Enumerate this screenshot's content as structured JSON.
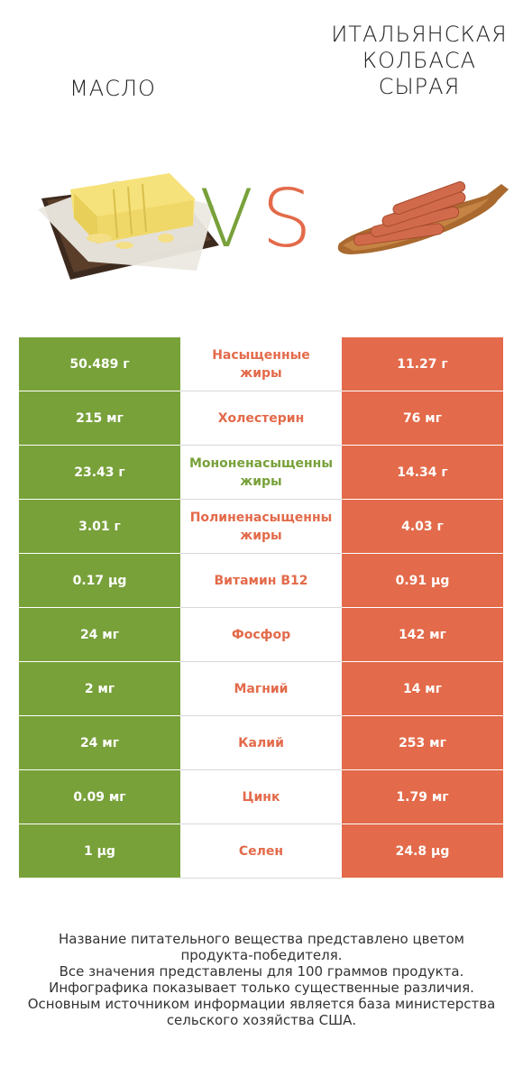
{
  "header": {
    "left_title": "МАСЛО",
    "right_title_lines": [
      "ИТАЛЬЯНСКАЯ",
      "КОЛБАСА",
      "СЫРАЯ"
    ],
    "vs_v": "V",
    "vs_s": "S"
  },
  "colors": {
    "winner_left": "#78a13a",
    "winner_right": "#e36a4a"
  },
  "rows": [
    {
      "left": "50.489 г",
      "label_lines": [
        "Насыщенные",
        "жиры"
      ],
      "right": "11.27 г",
      "winner": "right"
    },
    {
      "left": "215 мг",
      "label_lines": [
        "Холестерин"
      ],
      "right": "76 мг",
      "winner": "right"
    },
    {
      "left": "23.43 г",
      "label_lines": [
        "Мононенасыщенны",
        "жиры"
      ],
      "right": "14.34 г",
      "winner": "left"
    },
    {
      "left": "3.01 г",
      "label_lines": [
        "Полиненасыщенны",
        "жиры"
      ],
      "right": "4.03 г",
      "winner": "right"
    },
    {
      "left": "0.17 µg",
      "label_lines": [
        "Витамин B12"
      ],
      "right": "0.91 µg",
      "winner": "right"
    },
    {
      "left": "24 мг",
      "label_lines": [
        "Фосфор"
      ],
      "right": "142 мг",
      "winner": "right"
    },
    {
      "left": "2 мг",
      "label_lines": [
        "Магний"
      ],
      "right": "14 мг",
      "winner": "right"
    },
    {
      "left": "24 мг",
      "label_lines": [
        "Калий"
      ],
      "right": "253 мг",
      "winner": "right"
    },
    {
      "left": "0.09 мг",
      "label_lines": [
        "Цинк"
      ],
      "right": "1.79 мг",
      "winner": "right"
    },
    {
      "left": "1 µg",
      "label_lines": [
        "Селен"
      ],
      "right": "24.8 µg",
      "winner": "right"
    }
  ],
  "footer_lines": [
    "Название питательного вещества представлено цветом",
    "продукта-победителя.",
    "Все значения представлены для 100 граммов продукта.",
    "Инфографика показывает только существенные различия.",
    "Основным источником информации является база министерства",
    "сельского хозяйства США."
  ]
}
